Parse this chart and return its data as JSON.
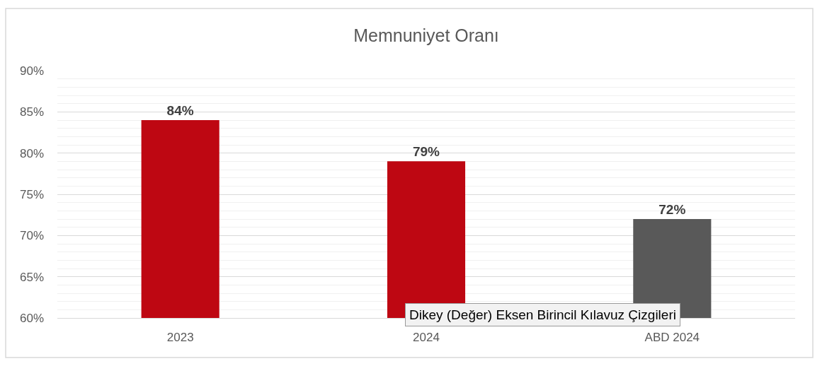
{
  "chart_data": {
    "type": "bar",
    "title": "Memnuniyet Oranı",
    "categories": [
      "2023",
      "2024",
      "ABD 2024"
    ],
    "values": [
      84,
      79,
      72
    ],
    "colors": [
      "#be0712",
      "#be0712",
      "#595959"
    ],
    "value_labels": [
      "84%",
      "79%",
      "72%"
    ],
    "ylim": [
      60,
      90
    ],
    "yticks": [
      {
        "value": 60,
        "label": "60%"
      },
      {
        "value": 61,
        "label": null
      },
      {
        "value": 62,
        "label": null
      },
      {
        "value": 63,
        "label": null
      },
      {
        "value": 64,
        "label": null
      },
      {
        "value": 65,
        "label": "65%"
      },
      {
        "value": 66,
        "label": null
      },
      {
        "value": 67,
        "label": null
      },
      {
        "value": 68,
        "label": null
      },
      {
        "value": 69,
        "label": null
      },
      {
        "value": 70,
        "label": "70%"
      },
      {
        "value": 71,
        "label": null
      },
      {
        "value": 72,
        "label": null
      },
      {
        "value": 73,
        "label": null
      },
      {
        "value": 74,
        "label": null
      },
      {
        "value": 75,
        "label": "75%"
      },
      {
        "value": 76,
        "label": null
      },
      {
        "value": 77,
        "label": null
      },
      {
        "value": 78,
        "label": null
      },
      {
        "value": 79,
        "label": null
      },
      {
        "value": 80,
        "label": "80%"
      },
      {
        "value": 81,
        "label": null
      },
      {
        "value": 82,
        "label": null
      },
      {
        "value": 83,
        "label": null
      },
      {
        "value": 84,
        "label": null
      },
      {
        "value": 85,
        "label": "85%"
      },
      {
        "value": 86,
        "label": null
      },
      {
        "value": 87,
        "label": null
      },
      {
        "value": 88,
        "label": null
      },
      {
        "value": 89,
        "label": null
      },
      {
        "value": 90,
        "label": "90%"
      }
    ],
    "grid": "y",
    "annotations": [
      "Dikey (Değer) Eksen Birincil Kılavuz Çizgileri"
    ]
  }
}
